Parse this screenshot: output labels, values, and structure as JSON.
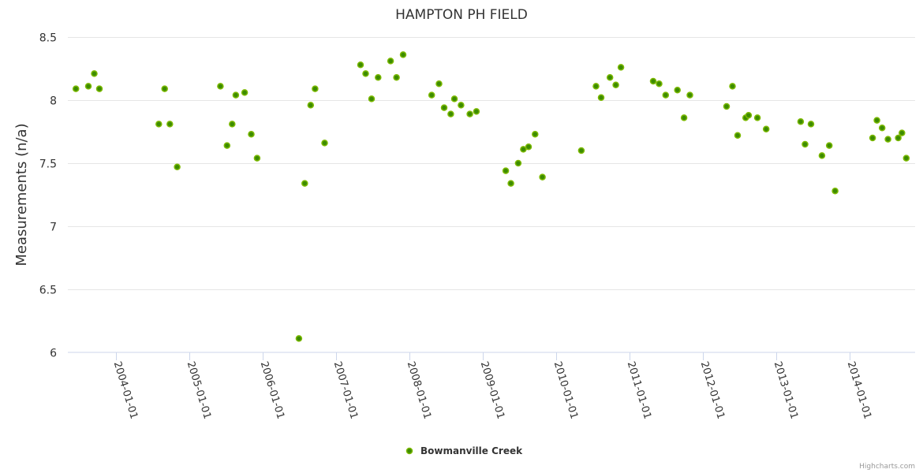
{
  "chart_data": {
    "type": "scatter",
    "title": "HAMPTON PH FIELD",
    "xlabel": "",
    "ylabel": "Measurements (n/a)",
    "ylim": [
      6,
      8.5
    ],
    "xlim": [
      2003.34,
      2014.89
    ],
    "y_ticks": [
      "6",
      "6.5",
      "7",
      "7.5",
      "8",
      "8.5"
    ],
    "y_tick_values": [
      6,
      6.5,
      7,
      7.5,
      8,
      8.5
    ],
    "x_ticks": [
      "2004-01-01",
      "2005-01-01",
      "2006-01-01",
      "2007-01-01",
      "2008-01-01",
      "2009-01-01",
      "2010-01-01",
      "2011-01-01",
      "2012-01-01",
      "2013-01-01",
      "2014-01-01"
    ],
    "x_tick_values": [
      2004,
      2005,
      2006,
      2007,
      2008,
      2009,
      2010,
      2011,
      2012,
      2013,
      2014
    ],
    "grid": true,
    "legend_position": "bottom-center",
    "series": [
      {
        "name": "Bowmanville Creek",
        "color": "#7cb900",
        "center_color": "#3d8c00",
        "x": [
          2003.45,
          2003.62,
          2003.7,
          2003.77,
          2004.58,
          2004.66,
          2004.73,
          2004.83,
          2005.42,
          2005.51,
          2005.58,
          2005.63,
          2005.75,
          2005.84,
          2005.92,
          2006.49,
          2006.57,
          2006.65,
          2006.71,
          2006.84,
          2007.33,
          2007.4,
          2007.48,
          2007.57,
          2007.74,
          2007.82,
          2007.91,
          2008.3,
          2008.4,
          2008.47,
          2008.56,
          2008.61,
          2008.7,
          2008.82,
          2008.91,
          2009.31,
          2009.38,
          2009.48,
          2009.55,
          2009.62,
          2009.71,
          2009.81,
          2010.34,
          2010.54,
          2010.61,
          2010.73,
          2010.81,
          2010.88,
          2011.32,
          2011.4,
          2011.49,
          2011.65,
          2011.74,
          2011.82,
          2012.32,
          2012.4,
          2012.47,
          2012.58,
          2012.62,
          2012.74,
          2012.86,
          2013.33,
          2013.39,
          2013.47,
          2013.62,
          2013.72,
          2013.8,
          2014.31,
          2014.37,
          2014.44,
          2014.52,
          2014.66,
          2014.71,
          2014.77
        ],
        "y": [
          8.09,
          8.11,
          8.21,
          8.09,
          7.81,
          8.09,
          7.81,
          7.47,
          8.11,
          7.64,
          7.81,
          8.04,
          8.06,
          7.73,
          7.54,
          6.11,
          7.34,
          7.96,
          8.09,
          7.66,
          8.28,
          8.21,
          8.01,
          8.18,
          8.31,
          8.18,
          8.36,
          8.04,
          8.13,
          7.94,
          7.89,
          8.01,
          7.96,
          7.89,
          7.91,
          7.44,
          7.34,
          7.5,
          7.61,
          7.63,
          7.73,
          7.39,
          7.6,
          8.11,
          8.02,
          8.18,
          8.12,
          8.26,
          8.15,
          8.13,
          8.04,
          8.08,
          7.86,
          8.04,
          7.95,
          8.11,
          7.72,
          7.86,
          7.88,
          7.86,
          7.77,
          7.83,
          7.65,
          7.81,
          7.56,
          7.64,
          7.28,
          7.7,
          7.84,
          7.78,
          7.69,
          7.7,
          7.74,
          7.54
        ]
      }
    ]
  },
  "credits": "Highcharts.com"
}
